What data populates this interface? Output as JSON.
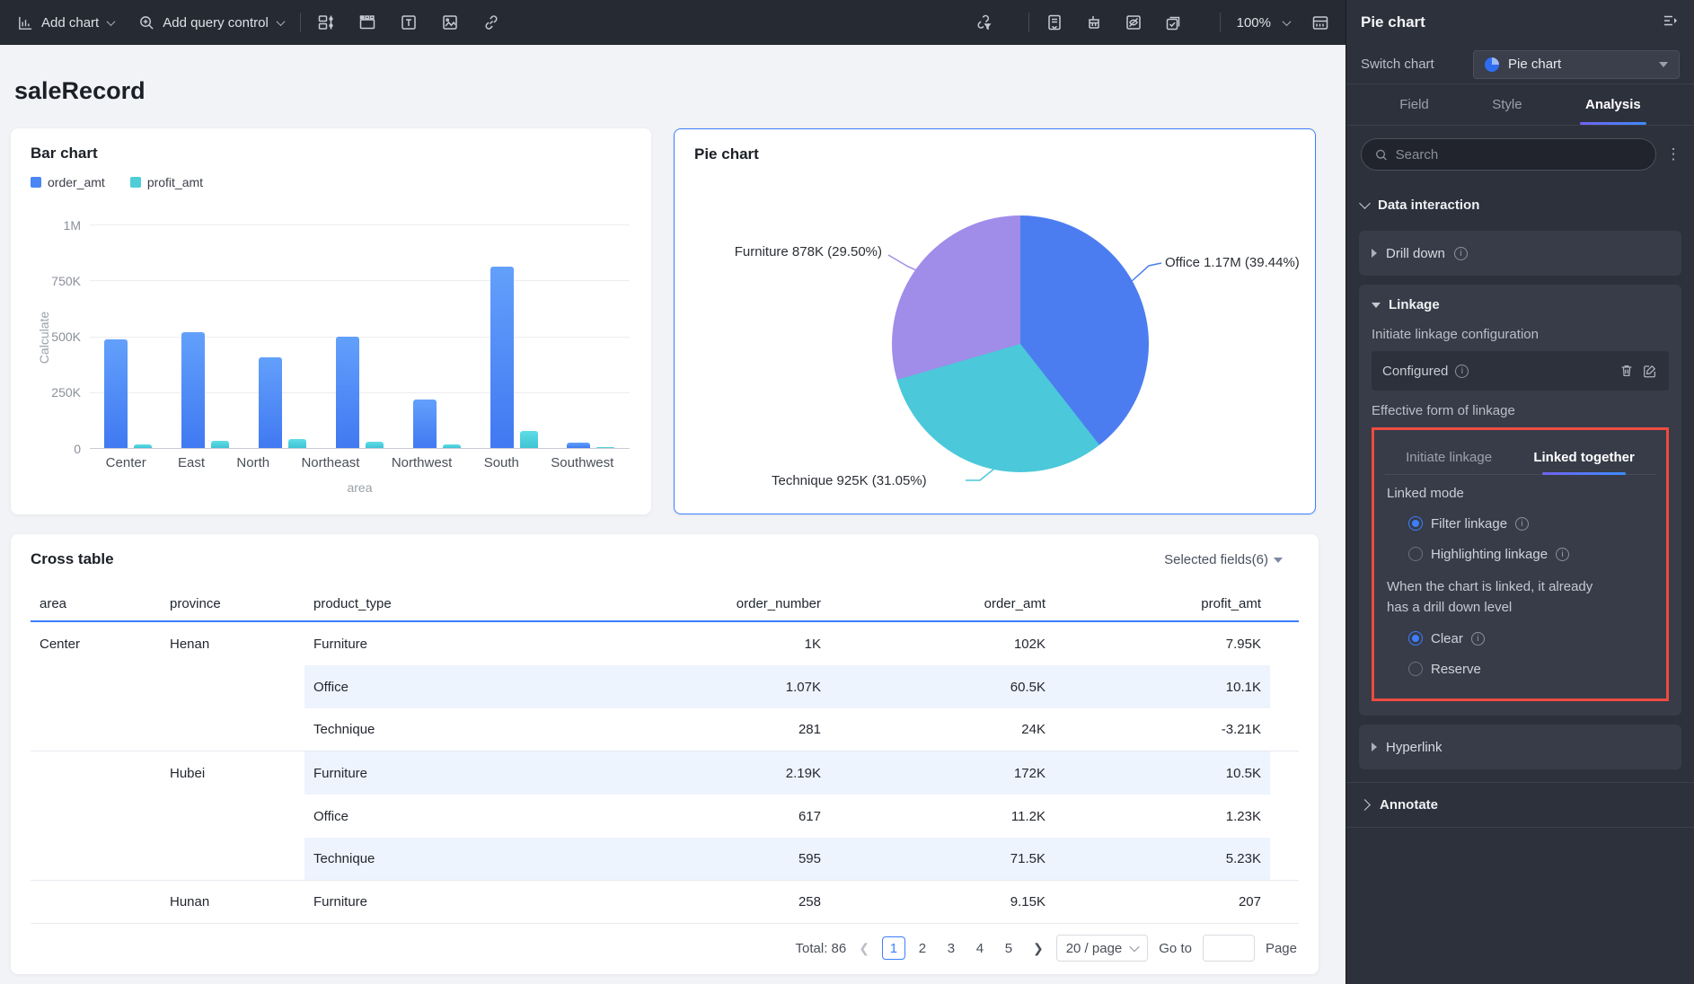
{
  "toolbar": {
    "add_chart": "Add chart",
    "add_query_control": "Add query control",
    "zoom_level": "100%"
  },
  "icons": {
    "left": [
      "add-chart-icon",
      "add-query-control-icon",
      "slider-control-icon",
      "tab-container-icon",
      "text-icon",
      "image-icon",
      "link-icon"
    ],
    "right": [
      "link-filter-icon",
      "form-icon",
      "brush-icon",
      "hide-preview-icon",
      "checklist-icon",
      "calendar-icon"
    ]
  },
  "page": {
    "title": "saleRecord"
  },
  "bar_card": {
    "title": "Bar chart"
  },
  "pie_card": {
    "title": "Pie chart"
  },
  "chart_data": [
    {
      "type": "bar",
      "title": "Bar chart",
      "categories": [
        "Center",
        "East",
        "North",
        "Northeast",
        "Northwest",
        "South",
        "Southwest"
      ],
      "series": [
        {
          "name": "order_amt",
          "color": "#4a86f6",
          "values": [
            485000,
            520000,
            405000,
            498000,
            215000,
            810000,
            25000
          ]
        },
        {
          "name": "profit_amt",
          "color": "#4ecdd9",
          "values": [
            18000,
            32000,
            42000,
            30000,
            18000,
            75000,
            4000
          ]
        }
      ],
      "xlabel": "area",
      "ylabel": "Calculate",
      "yticks": [
        "1M",
        "750K",
        "500K",
        "250K",
        "0"
      ],
      "ylim": [
        0,
        1000000
      ],
      "grid": true,
      "legend_position": "top-left"
    },
    {
      "type": "pie",
      "title": "Pie chart",
      "start_angle_deg": 0,
      "direction": "clockwise",
      "slices": [
        {
          "name": "Office",
          "value": 1170000,
          "percent": 39.44,
          "color": "#4c7df0",
          "label": "Office 1.17M (39.44%)"
        },
        {
          "name": "Technique",
          "value": 925000,
          "percent": 31.05,
          "color": "#4bc8d9",
          "label": "Technique 925K (31.05%)"
        },
        {
          "name": "Furniture",
          "value": 878000,
          "percent": 29.5,
          "color": "#a08ce9",
          "label": "Furniture 878K (29.50%)"
        }
      ]
    }
  ],
  "cross_table": {
    "title": "Cross table",
    "selected_fields": "Selected fields(6)",
    "columns": [
      "area",
      "province",
      "product_type",
      "order_number",
      "order_amt",
      "profit_amt"
    ],
    "rows": [
      [
        "Center",
        "Henan",
        "Furniture",
        "1K",
        "102K",
        "7.95K"
      ],
      [
        "",
        "",
        "Office",
        "1.07K",
        "60.5K",
        "10.1K"
      ],
      [
        "",
        "",
        "Technique",
        "281",
        "24K",
        "-3.21K"
      ],
      [
        "",
        "Hubei",
        "Furniture",
        "2.19K",
        "172K",
        "10.5K"
      ],
      [
        "",
        "",
        "Office",
        "617",
        "11.2K",
        "1.23K"
      ],
      [
        "",
        "",
        "Technique",
        "595",
        "71.5K",
        "5.23K"
      ],
      [
        "",
        "Hunan",
        "Furniture",
        "258",
        "9.15K",
        "207"
      ]
    ]
  },
  "pagination": {
    "total": "Total: 86",
    "pages": [
      "1",
      "2",
      "3",
      "4",
      "5"
    ],
    "active_page": "1",
    "page_size": "20 / page",
    "goto_label": "Go to",
    "page_label": "Page"
  },
  "panel": {
    "title": "Pie chart",
    "switch_chart_label": "Switch chart",
    "switch_chart_value": "Pie chart",
    "tabs": [
      "Field",
      "Style",
      "Analysis"
    ],
    "active_tab": "Analysis",
    "search_placeholder": "Search",
    "data_interaction": "Data interaction",
    "drill_down": "Drill down",
    "linkage": "Linkage",
    "initiate_linkage_configuration": "Initiate linkage configuration",
    "configured": "Configured",
    "effective_form": "Effective form of linkage",
    "linkage_tabs": [
      "Initiate linkage",
      "Linked together"
    ],
    "active_linkage_tab": "Linked together",
    "linked_mode": "Linked mode",
    "filter_linkage": "Filter linkage",
    "highlighting_linkage": "Highlighting linkage",
    "linked_note": "When the chart is linked, it already\nhas a drill down level",
    "clear": "Clear",
    "reserve": "Reserve",
    "hyperlink": "Hyperlink",
    "annotate": "Annotate"
  },
  "colors": {
    "accent_blue": "#3d7eff",
    "highlight_red": "#ef4b40",
    "bar_blue": "#4a86f6",
    "bar_teal": "#4ecdd9",
    "pie_blue": "#4c7df0",
    "pie_teal": "#4bc8d9",
    "pie_purple": "#a08ce9",
    "stripe": "#eef4fd"
  }
}
